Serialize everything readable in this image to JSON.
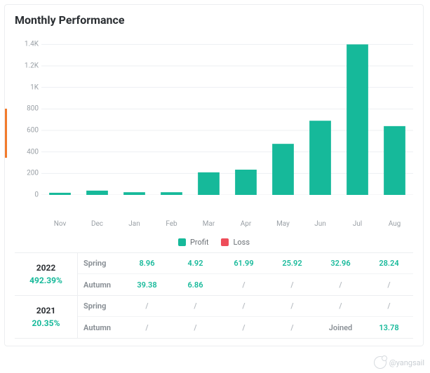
{
  "title": "Monthly Performance",
  "chart": {
    "type": "bar",
    "categories": [
      "Nov",
      "Dec",
      "Jan",
      "Feb",
      "Mar",
      "Apr",
      "May",
      "Jun",
      "Jul",
      "Aug"
    ],
    "values": [
      20,
      40,
      25,
      25,
      210,
      235,
      475,
      690,
      1400,
      640
    ],
    "bar_color": "#16b99a",
    "loss_color": "#ee4d5a",
    "grid_color": "#edeff2",
    "axis_label_color": "#9aa0a6",
    "ylim": [
      0,
      1500
    ],
    "yticks": [
      0,
      200,
      400,
      600,
      800,
      1000,
      1200,
      1400
    ],
    "ytick_labels": [
      "0",
      "200",
      "400",
      "600",
      "800",
      "1K",
      "1.2K",
      "1.4K"
    ],
    "bar_width_ratio": 0.58,
    "background": "#ffffff"
  },
  "legend": {
    "profit": "Profit",
    "loss": "Loss"
  },
  "table": {
    "positive_color": "#16b99a",
    "neutral_color": "#b7bcc2",
    "text_color": "#8a9096",
    "rows": [
      {
        "year": "2022",
        "pct": "492.39%",
        "pct_color": "#16b99a",
        "spring": [
          "8.96",
          "4.92",
          "61.99",
          "25.92",
          "32.96",
          "28.24"
        ],
        "autumn": [
          "39.38",
          "6.86",
          "/",
          "/",
          "/",
          "/"
        ]
      },
      {
        "year": "2021",
        "pct": "20.35%",
        "pct_color": "#16b99a",
        "spring": [
          "/",
          "/",
          "/",
          "/",
          "/",
          "/"
        ],
        "autumn": [
          "/",
          "/",
          "/",
          "/",
          "Joined",
          "13.78"
        ]
      }
    ],
    "season_labels": {
      "spring": "Spring",
      "autumn": "Autumn"
    }
  },
  "watermark": "@yangsail"
}
